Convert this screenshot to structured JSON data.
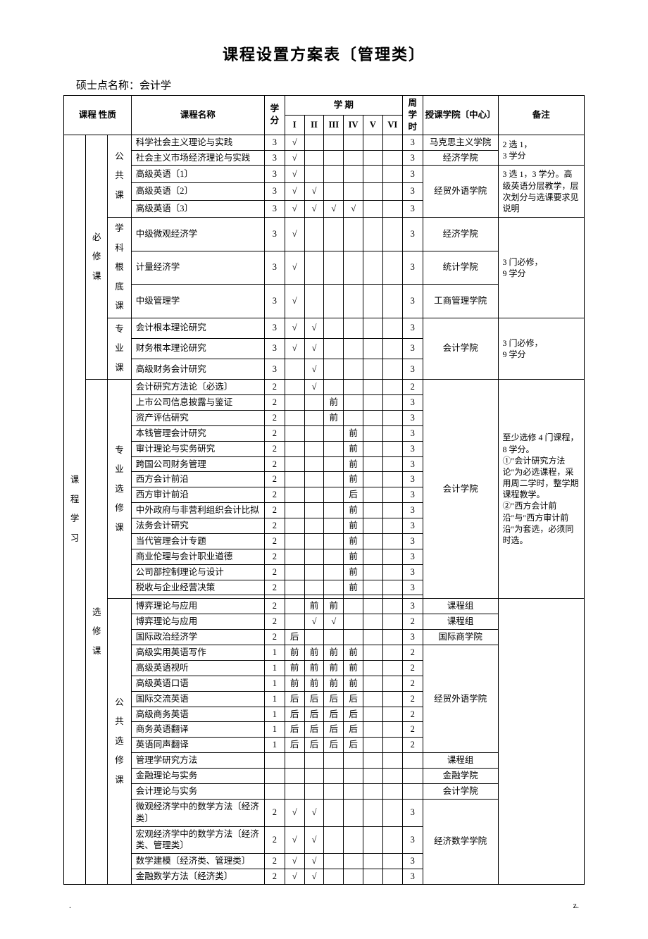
{
  "title": "课程设置方案表〔管理类〕",
  "subtitle": "硕士点名称：会计学",
  "headers": {
    "cat": "课程\n性质",
    "name": "课程名称",
    "credit": "学分",
    "semester": "学 期",
    "sem_labels": [
      "I",
      "II",
      "III",
      "IV",
      "V",
      "VI"
    ],
    "hours": "周学时",
    "inst": "授课学院〔中心〕",
    "note": "备注"
  },
  "big_left": "课程学习",
  "groups": [
    {
      "cat2": "必修课",
      "subgroups": [
        {
          "cat3": "公共课",
          "rows": [
            {
              "n": "科学社会主义理论与实践",
              "c": "3",
              "s": [
                "√",
                "",
                "",
                "",
                "",
                ""
              ],
              "h": "3",
              "inst": "马克思主义学院",
              "note": "2 选 1，\n3 学分",
              "inst_rs": 1,
              "note_rs": 2
            },
            {
              "n": "社会主义市场经济理论与实践",
              "c": "3",
              "s": [
                "√",
                "",
                "",
                "",
                "",
                ""
              ],
              "h": "3",
              "inst": "经济学院",
              "inst_rs": 1
            },
            {
              "n": "高级英语〔1〕",
              "c": "3",
              "s": [
                "√",
                "",
                "",
                "",
                "",
                ""
              ],
              "h": "3",
              "inst": "经贸外语学院",
              "inst_rs": 3,
              "note": "3 选 1，3 学分。高级英语分层教学，层次划分与选课要求见说明",
              "note_rs": 3
            },
            {
              "n": "高级英语〔2〕",
              "c": "3",
              "s": [
                "√",
                "√",
                "",
                "",
                "",
                ""
              ],
              "h": "3"
            },
            {
              "n": "高级英语〔3〕",
              "c": "3",
              "s": [
                "√",
                "√",
                "√",
                "√",
                "",
                ""
              ],
              "h": "3"
            }
          ]
        },
        {
          "cat3": "学科根底课",
          "rows": [
            {
              "n": "中级微观经济学",
              "c": "3",
              "s": [
                "√",
                "",
                "",
                "",
                "",
                ""
              ],
              "h": "3",
              "inst": "经济学院",
              "inst_rs": 1,
              "note": "3 门必修，\n9 学分",
              "note_rs": 3
            },
            {
              "n": "计量经济学",
              "c": "3",
              "s": [
                "√",
                "",
                "",
                "",
                "",
                ""
              ],
              "h": "3",
              "inst": "统计学院",
              "inst_rs": 1
            },
            {
              "n": "中级管理学",
              "c": "3",
              "s": [
                "√",
                "",
                "",
                "",
                "",
                ""
              ],
              "h": "3",
              "inst": "工商管理学院",
              "inst_rs": 1
            }
          ]
        },
        {
          "cat3": "专业课",
          "rows": [
            {
              "n": "会计根本理论研究",
              "c": "3",
              "s": [
                "√",
                "√",
                "",
                "",
                "",
                ""
              ],
              "h": "3",
              "inst": "会计学院",
              "inst_rs": 3,
              "note": "3 门必修，\n9 学分",
              "note_rs": 3
            },
            {
              "n": "财务根本理论研究",
              "c": "3",
              "s": [
                "√",
                "√",
                "",
                "",
                "",
                ""
              ],
              "h": "3"
            },
            {
              "n": "高级财务会计研究",
              "c": "3",
              "s": [
                "",
                "√",
                "",
                "",
                "",
                ""
              ],
              "h": "3"
            }
          ]
        }
      ]
    },
    {
      "cat2": "选修课",
      "subgroups": [
        {
          "cat3": "专业选修课",
          "rows": [
            {
              "n": "会计研究方法论〔必选〕",
              "c": "2",
              "s": [
                "",
                "√",
                "",
                "",
                "",
                ""
              ],
              "h": "2",
              "inst": "会计学院",
              "inst_rs": 15,
              "note": "至少选修 4 门课程，8 学分。\n①\"会计研究方法论\"为必选课程，采用周二学时，整学期课程教学。\n②\"西方会计前沿\"与\"西方审计前沿\"为套选，必须同时选。",
              "note_rs": 15
            },
            {
              "n": "上市公司信息披露与鉴证",
              "c": "2",
              "s": [
                "",
                "",
                "前",
                "",
                "",
                ""
              ],
              "h": "3"
            },
            {
              "n": "资产评估研究",
              "c": "2",
              "s": [
                "",
                "",
                "前",
                "",
                "",
                ""
              ],
              "h": "3"
            },
            {
              "n": "本钱管理会计研究",
              "c": "2",
              "s": [
                "",
                "",
                "",
                "前",
                "",
                ""
              ],
              "h": "3"
            },
            {
              "n": "审计理论与实务研究",
              "c": "2",
              "s": [
                "",
                "",
                "",
                "前",
                "",
                ""
              ],
              "h": "3"
            },
            {
              "n": "跨国公司财务管理",
              "c": "2",
              "s": [
                "",
                "",
                "",
                "前",
                "",
                ""
              ],
              "h": "3"
            },
            {
              "n": "西方会计前沿",
              "c": "2",
              "s": [
                "",
                "",
                "",
                "前",
                "",
                ""
              ],
              "h": "3"
            },
            {
              "n": "西方审计前沿",
              "c": "2",
              "s": [
                "",
                "",
                "",
                "后",
                "",
                ""
              ],
              "h": "3"
            },
            {
              "n": "中外政府与非营利组织会计比拟",
              "c": "2",
              "s": [
                "",
                "",
                "",
                "前",
                "",
                ""
              ],
              "h": "3"
            },
            {
              "n": "法务会计研究",
              "c": "2",
              "s": [
                "",
                "",
                "",
                "前",
                "",
                ""
              ],
              "h": "3"
            },
            {
              "n": "当代管理会计专题",
              "c": "2",
              "s": [
                "",
                "",
                "",
                "前",
                "",
                ""
              ],
              "h": "3"
            },
            {
              "n": "商业伦理与会计职业道德",
              "c": "2",
              "s": [
                "",
                "",
                "",
                "前",
                "",
                ""
              ],
              "h": "3"
            },
            {
              "n": "公司部控制理论与设计",
              "c": "2",
              "s": [
                "",
                "",
                "",
                "前",
                "",
                ""
              ],
              "h": "3"
            },
            {
              "n": "税收与企业经营决策",
              "c": "2",
              "s": [
                "",
                "",
                "",
                "前",
                "",
                ""
              ],
              "h": "3"
            },
            {
              "n": "",
              "c": "",
              "s": [
                "",
                "",
                "",
                "",
                "",
                ""
              ],
              "h": ""
            }
          ]
        },
        {
          "cat3": "公共选修课",
          "rows": [
            {
              "n": "博弈理论与应用",
              "c": "2",
              "s": [
                "",
                "前",
                "前",
                "",
                "",
                ""
              ],
              "h": "3",
              "inst": "课程组",
              "inst_rs": 1,
              "note": "",
              "note_rs": 17
            },
            {
              "n": "博弈理论与应用",
              "c": "2",
              "s": [
                "",
                "√",
                "√",
                "",
                "",
                ""
              ],
              "h": "2",
              "inst": "课程组",
              "inst_rs": 1
            },
            {
              "n": "国际政治经济学",
              "c": "2",
              "s": [
                "后",
                "",
                "",
                "",
                "",
                ""
              ],
              "h": "3",
              "inst": "国际商学院",
              "inst_rs": 1
            },
            {
              "n": "高级实用英语写作",
              "c": "1",
              "s": [
                "前",
                "前",
                "前",
                "前",
                "",
                ""
              ],
              "h": "2",
              "inst": "经贸外语学院",
              "inst_rs": 7
            },
            {
              "n": "高级英语视听",
              "c": "1",
              "s": [
                "前",
                "前",
                "前",
                "前",
                "",
                ""
              ],
              "h": "2"
            },
            {
              "n": "高级英语口语",
              "c": "1",
              "s": [
                "前",
                "前",
                "前",
                "前",
                "",
                ""
              ],
              "h": "2"
            },
            {
              "n": "国际交流英语",
              "c": "1",
              "s": [
                "后",
                "后",
                "后",
                "后",
                "",
                ""
              ],
              "h": "2"
            },
            {
              "n": "高级商务英语",
              "c": "1",
              "s": [
                "后",
                "后",
                "后",
                "后",
                "",
                ""
              ],
              "h": "2"
            },
            {
              "n": "商务英语翻译",
              "c": "1",
              "s": [
                "后",
                "后",
                "后",
                "后",
                "",
                ""
              ],
              "h": "2"
            },
            {
              "n": "英语同声翻译",
              "c": "1",
              "s": [
                "后",
                "后",
                "后",
                "后",
                "",
                ""
              ],
              "h": "2"
            },
            {
              "n": "管理学研究方法",
              "c": "",
              "s": [
                "",
                "",
                "",
                "",
                "",
                ""
              ],
              "h": "",
              "inst": "课程组",
              "inst_rs": 1
            },
            {
              "n": "金融理论与实务",
              "c": "",
              "s": [
                "",
                "",
                "",
                "",
                "",
                ""
              ],
              "h": "",
              "inst": "金融学院",
              "inst_rs": 1
            },
            {
              "n": "会计理论与实务",
              "c": "",
              "s": [
                "",
                "",
                "",
                "",
                "",
                ""
              ],
              "h": "",
              "inst": "会计学院",
              "inst_rs": 1
            },
            {
              "n": "微观经济学中的数学方法〔经济类〕",
              "c": "2",
              "s": [
                "√",
                "√",
                "",
                "",
                "",
                ""
              ],
              "h": "3",
              "inst": "经济数学学院",
              "inst_rs": 4
            },
            {
              "n": "宏观经济学中的数学方法〔经济类、管理类〕",
              "c": "2",
              "s": [
                "√",
                "√",
                "",
                "",
                "",
                ""
              ],
              "h": "3"
            },
            {
              "n": "数学建模〔经济类、管理类〕",
              "c": "2",
              "s": [
                "√",
                "√",
                "",
                "",
                "",
                ""
              ],
              "h": "3"
            },
            {
              "n": "金融数学方法〔经济类〕",
              "c": "2",
              "s": [
                "√",
                "√",
                "",
                "",
                "",
                ""
              ],
              "h": "3"
            }
          ]
        }
      ]
    }
  ],
  "footer": {
    "left": ".",
    "right": "z."
  }
}
